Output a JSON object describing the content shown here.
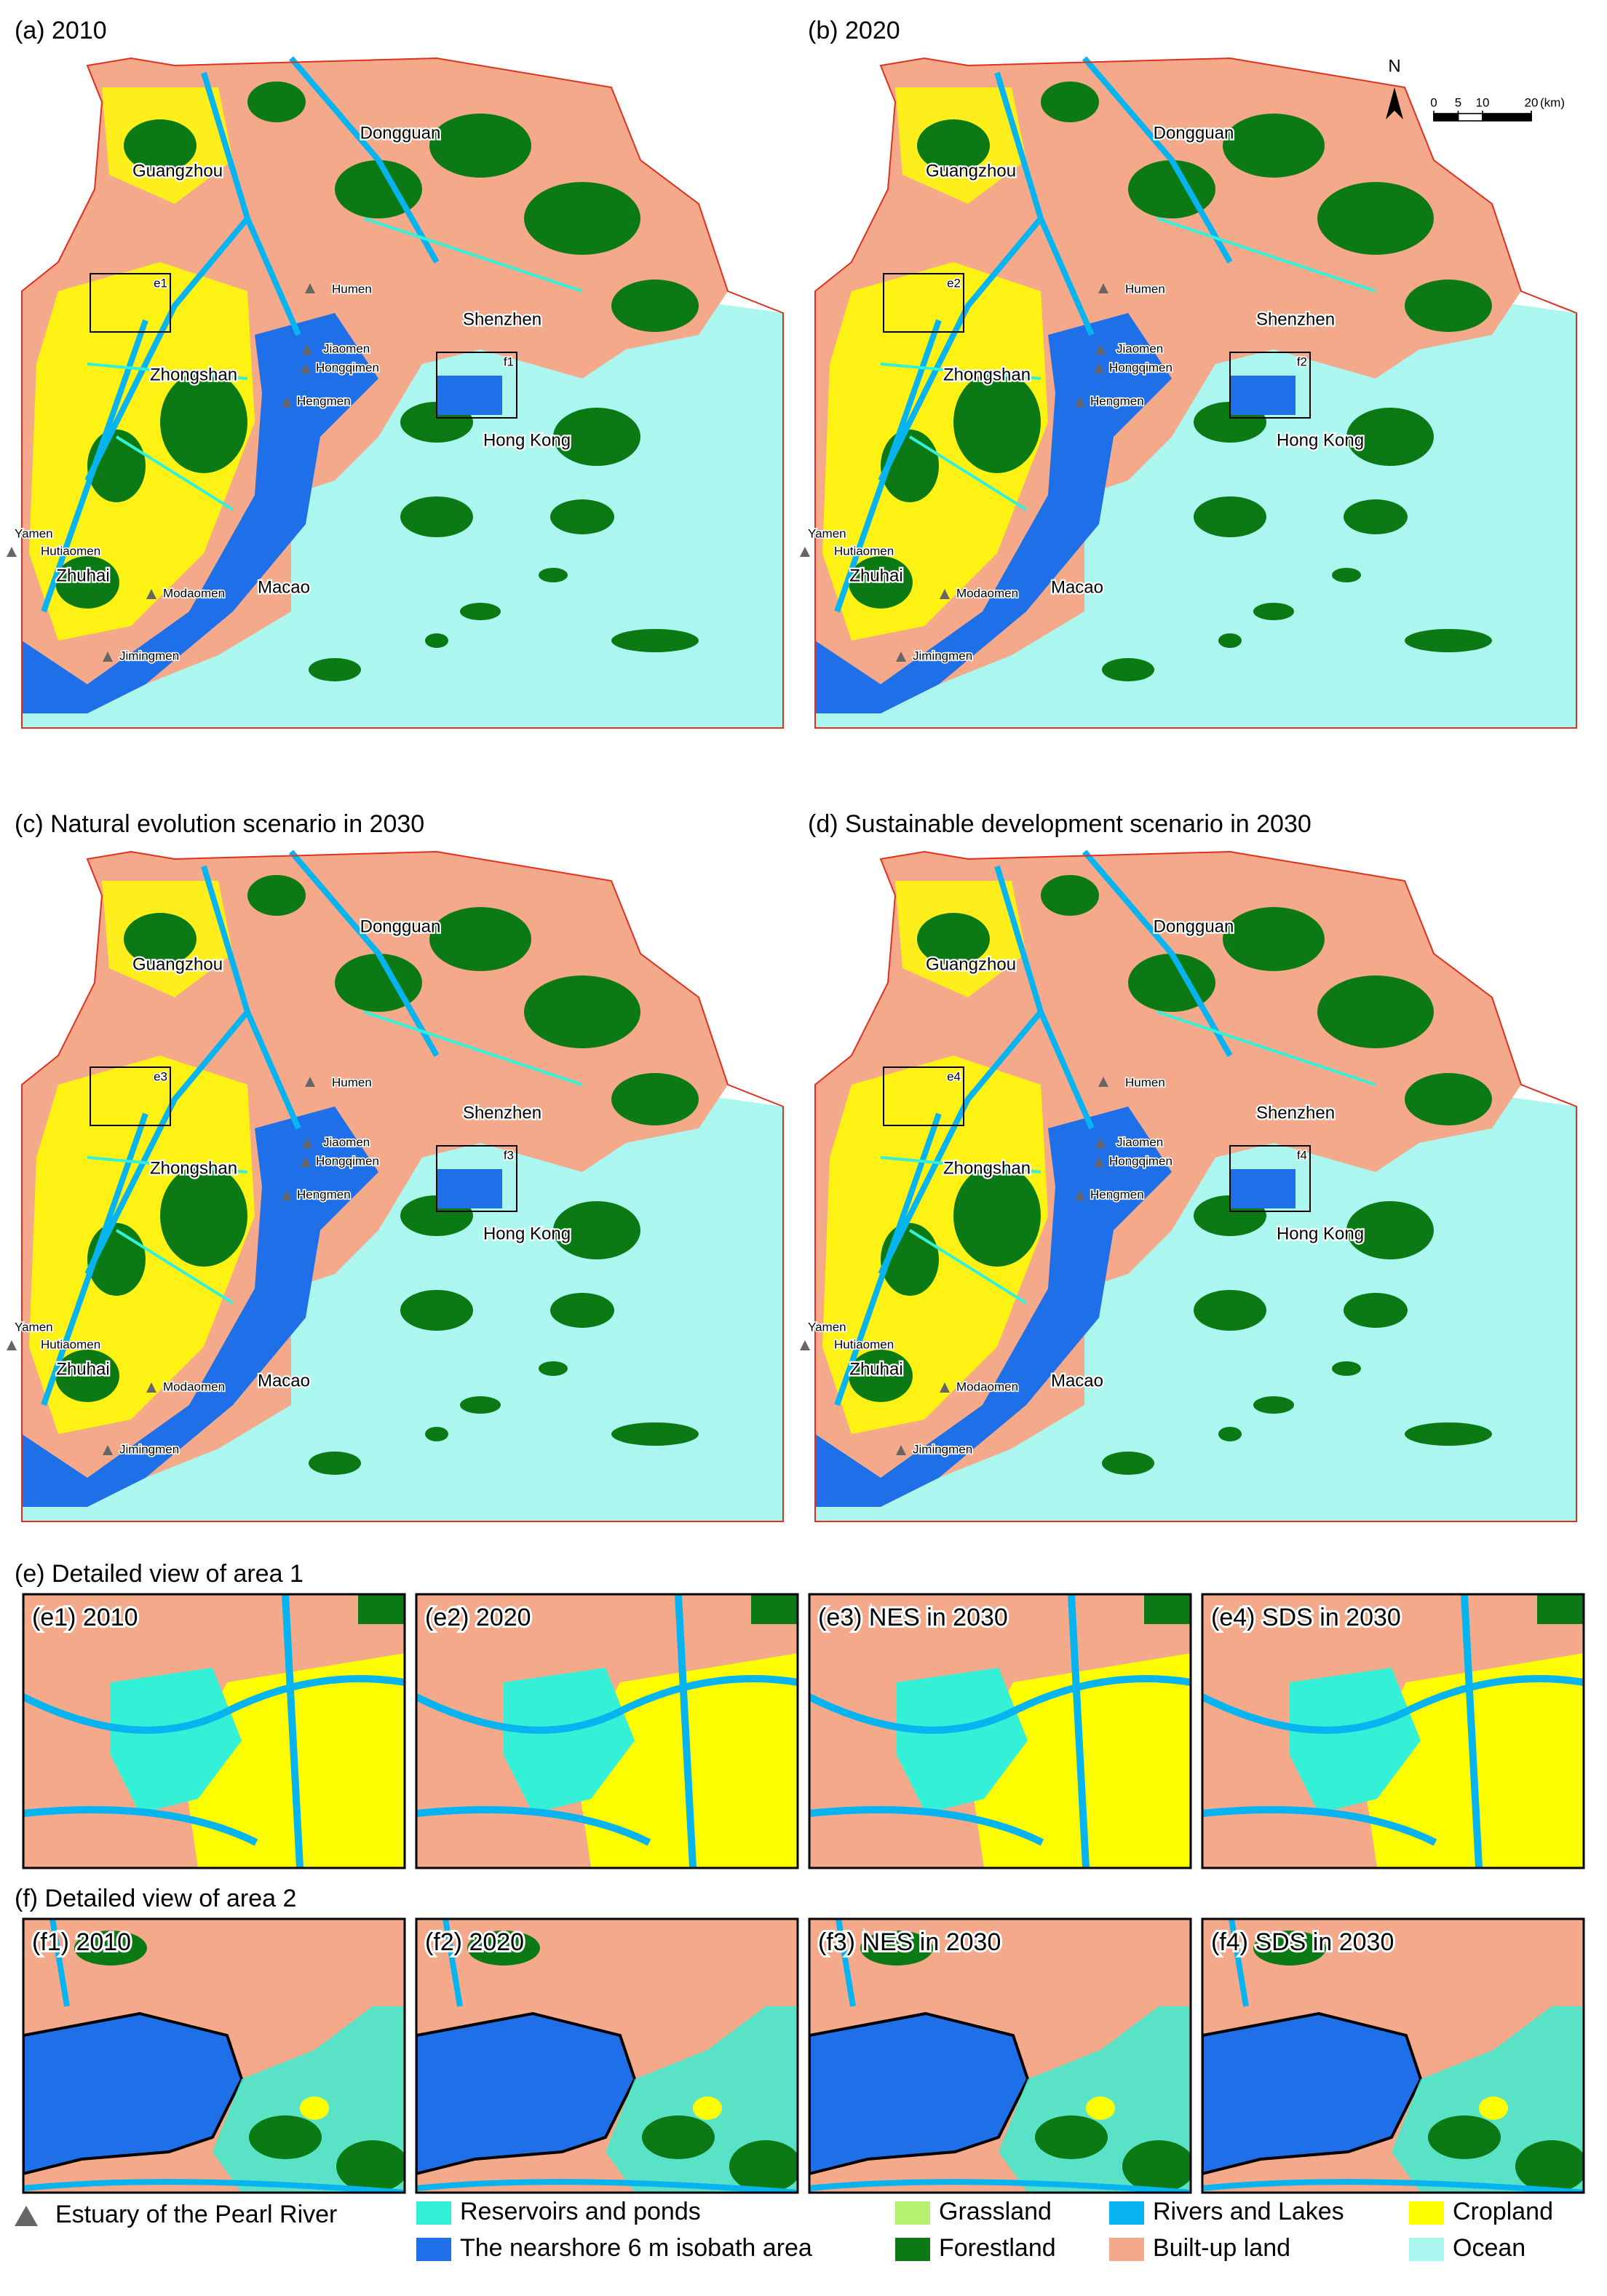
{
  "maps": [
    {
      "title": "(a) 2010",
      "area_labels": [
        "e1",
        "f1"
      ]
    },
    {
      "title": "(b) 2020",
      "area_labels": [
        "e2",
        "f2"
      ]
    },
    {
      "title": "(c) Natural evolution scenario in 2030",
      "area_labels": [
        "e3",
        "f3"
      ]
    },
    {
      "title": "(d) Sustainable development scenario in 2030",
      "area_labels": [
        "e4",
        "f4"
      ]
    }
  ],
  "places": [
    "Dongguan",
    "Guangzhou",
    "Shenzhen",
    "Zhongshan",
    "Hong Kong",
    "Zhuhai",
    "Macao"
  ],
  "estuaries": [
    "Humen",
    "Jiaomen",
    "Hongqimen",
    "Hengmen",
    "Yamen",
    "Hutiaomen",
    "Modaomen",
    "Jimingmen"
  ],
  "north": "N",
  "scale_bar": {
    "ticks": [
      0,
      5,
      10,
      20
    ],
    "unit": "(km)"
  },
  "details": [
    {
      "title": "(e) Detailed view of area 1",
      "panels": [
        "(e1) 2010",
        "(e2) 2020",
        "(e3) NES in 2030",
        "(e4) SDS in 2030"
      ]
    },
    {
      "title": "(f) Detailed view of area 2",
      "panels": [
        "(f1) 2010",
        "(f2) 2020",
        "(f3) NES in 2030",
        "(f4) SDS in 2030"
      ]
    }
  ],
  "legend": [
    {
      "label": "Estuary of the Pearl River",
      "color": "#666666"
    },
    {
      "label": "Reservoirs and ponds",
      "color": "#33f0d6"
    },
    {
      "label": "The nearshore 6 m isobath area",
      "color": "#1e6fe8"
    },
    {
      "label": "Grassland",
      "color": "#b6f26e"
    },
    {
      "label": "Forestland",
      "color": "#0b7a14"
    },
    {
      "label": "Rivers and Lakes",
      "color": "#08b4f0"
    },
    {
      "label": "Built-up land",
      "color": "#f4a98a"
    },
    {
      "label": "Cropland",
      "color": "#ffff00"
    },
    {
      "label": "Ocean",
      "color": "#acf6f0"
    }
  ]
}
